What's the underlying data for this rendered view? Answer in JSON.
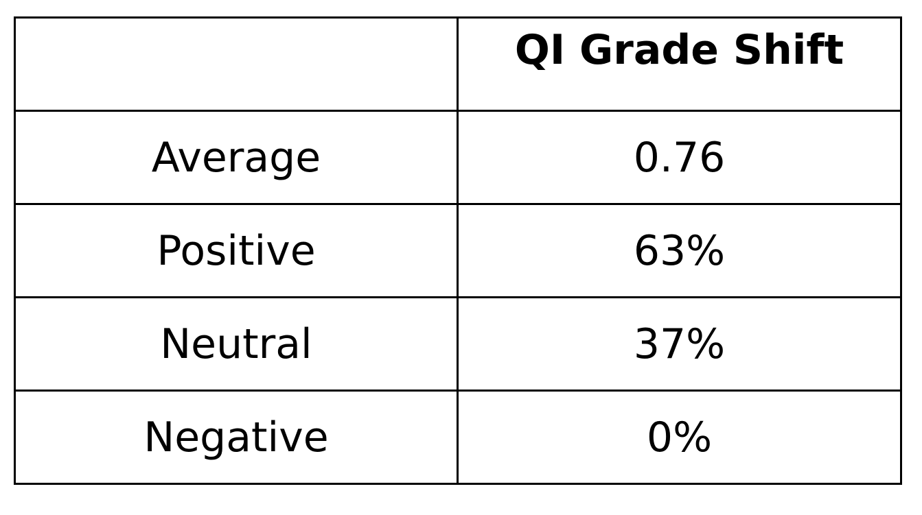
{
  "table": {
    "header": [
      "",
      "QI Grade Shift"
    ],
    "rows": [
      {
        "label": "Average",
        "value": "0.76"
      },
      {
        "label": "Positive",
        "value": "63%"
      },
      {
        "label": "Neutral",
        "value": "37%"
      },
      {
        "label": "Negative",
        "value": "0%"
      }
    ]
  },
  "colors": {
    "border": "#000000",
    "text": "#000000",
    "background": "#ffffff"
  }
}
